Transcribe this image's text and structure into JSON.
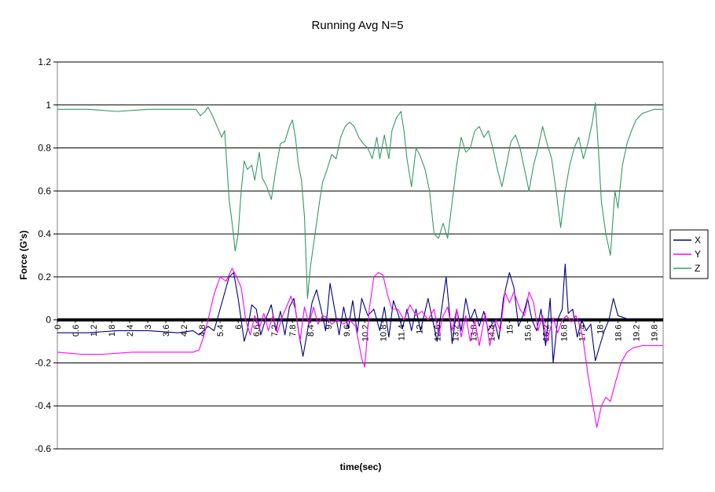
{
  "chart_data": {
    "type": "line",
    "title": "Running Avg N=5",
    "xlabel": "time(sec)",
    "ylabel": "Force (G's)",
    "ylim": [
      -0.6,
      1.2
    ],
    "xlim": [
      0,
      20.1
    ],
    "y_ticks": [
      "1.2",
      "1",
      "0.8",
      "0.6",
      "0.4",
      "0.2",
      "0",
      "-0.2",
      "-0.4",
      "-0.6"
    ],
    "x_ticks": [
      "0",
      "0.6",
      "1.2",
      "1.8",
      "2.4",
      "3",
      "3.6",
      "4.2",
      "4.8",
      "5.4",
      "6",
      "6.6",
      "7.2",
      "7.8",
      "8.4",
      "9",
      "9.6",
      "10.2",
      "10.8",
      "11.4",
      "12",
      "12.6",
      "13.2",
      "13.8",
      "14.4",
      "15",
      "15.6",
      "16.2",
      "16.8",
      "17.4",
      "18",
      "18.6",
      "19.2",
      "19.8"
    ],
    "grid": true,
    "legend_position": "right",
    "series": [
      {
        "name": "X",
        "color": "#000080",
        "points": [
          [
            0,
            -0.06
          ],
          [
            1.0,
            -0.06
          ],
          [
            2.0,
            -0.05
          ],
          [
            3.0,
            -0.05
          ],
          [
            4.0,
            -0.06
          ],
          [
            4.5,
            -0.05
          ],
          [
            4.7,
            -0.07
          ],
          [
            5.0,
            -0.03
          ],
          [
            5.2,
            -0.05
          ],
          [
            5.4,
            0.05
          ],
          [
            5.7,
            0.2
          ],
          [
            5.85,
            0.22
          ],
          [
            6.0,
            0.1
          ],
          [
            6.2,
            -0.1
          ],
          [
            6.3,
            -0.05
          ],
          [
            6.45,
            0.07
          ],
          [
            6.6,
            0.05
          ],
          [
            6.75,
            -0.07
          ],
          [
            6.9,
            0.0
          ],
          [
            7.1,
            0.07
          ],
          [
            7.25,
            -0.05
          ],
          [
            7.4,
            0.04
          ],
          [
            7.55,
            -0.07
          ],
          [
            7.7,
            0.06
          ],
          [
            7.85,
            0.1
          ],
          [
            8.0,
            -0.05
          ],
          [
            8.15,
            -0.17
          ],
          [
            8.3,
            -0.05
          ],
          [
            8.45,
            0.08
          ],
          [
            8.6,
            0.14
          ],
          [
            8.75,
            0.05
          ],
          [
            8.9,
            -0.05
          ],
          [
            9.05,
            0.17
          ],
          [
            9.2,
            0.05
          ],
          [
            9.35,
            -0.07
          ],
          [
            9.5,
            0.06
          ],
          [
            9.65,
            -0.04
          ],
          [
            9.8,
            0.09
          ],
          [
            9.95,
            -0.06
          ],
          [
            10.1,
            0.1
          ],
          [
            10.3,
            0.02
          ],
          [
            10.5,
            0.05
          ],
          [
            10.7,
            -0.05
          ],
          [
            10.85,
            0.06
          ],
          [
            11.0,
            -0.08
          ],
          [
            11.15,
            0.09
          ],
          [
            11.3,
            0.03
          ],
          [
            11.45,
            -0.04
          ],
          [
            11.6,
            0.05
          ],
          [
            11.75,
            -0.05
          ],
          [
            11.9,
            0.05
          ],
          [
            12.05,
            -0.05
          ],
          [
            12.3,
            0.1
          ],
          [
            12.45,
            0.0
          ],
          [
            12.6,
            -0.1
          ],
          [
            12.75,
            0.05
          ],
          [
            12.9,
            0.2
          ],
          [
            13.0,
            0.05
          ],
          [
            13.1,
            -0.11
          ],
          [
            13.25,
            0.05
          ],
          [
            13.4,
            -0.05
          ],
          [
            13.55,
            0.1
          ],
          [
            13.7,
            0.0
          ],
          [
            13.85,
            0.05
          ],
          [
            14.0,
            -0.03
          ],
          [
            14.15,
            0.04
          ],
          [
            14.3,
            -0.05
          ],
          [
            14.5,
            0.0
          ],
          [
            14.65,
            -0.09
          ],
          [
            14.8,
            0.1
          ],
          [
            15.0,
            0.22
          ],
          [
            15.15,
            0.15
          ],
          [
            15.3,
            -0.03
          ],
          [
            15.45,
            0.02
          ],
          [
            15.6,
            0.1
          ],
          [
            15.75,
            0.0
          ],
          [
            15.9,
            -0.05
          ],
          [
            16.05,
            0.05
          ],
          [
            16.2,
            -0.12
          ],
          [
            16.35,
            0.1
          ],
          [
            16.45,
            -0.2
          ],
          [
            16.6,
            0.0
          ],
          [
            16.75,
            0.05
          ],
          [
            16.85,
            0.26
          ],
          [
            16.95,
            0.03
          ],
          [
            17.1,
            0.05
          ],
          [
            17.25,
            -0.08
          ],
          [
            17.4,
            0.0
          ],
          [
            17.55,
            -0.05
          ],
          [
            17.7,
            -0.02
          ],
          [
            17.85,
            -0.19
          ],
          [
            18.0,
            -0.12
          ],
          [
            18.15,
            -0.05
          ],
          [
            18.3,
            0.0
          ],
          [
            18.45,
            0.1
          ],
          [
            18.6,
            0.02
          ],
          [
            18.8,
            0.01
          ],
          [
            19.0,
            0.0
          ]
        ]
      },
      {
        "name": "Y",
        "color": "#ff00ff",
        "points": [
          [
            0,
            -0.15
          ],
          [
            0.8,
            -0.16
          ],
          [
            1.5,
            -0.16
          ],
          [
            2.5,
            -0.15
          ],
          [
            3.5,
            -0.15
          ],
          [
            4.5,
            -0.15
          ],
          [
            4.7,
            -0.14
          ],
          [
            4.85,
            -0.08
          ],
          [
            5.0,
            0.0
          ],
          [
            5.2,
            0.12
          ],
          [
            5.4,
            0.2
          ],
          [
            5.6,
            0.18
          ],
          [
            5.8,
            0.24
          ],
          [
            5.95,
            0.2
          ],
          [
            6.1,
            0.15
          ],
          [
            6.25,
            0.0
          ],
          [
            6.4,
            -0.07
          ],
          [
            6.55,
            0.02
          ],
          [
            6.7,
            -0.04
          ],
          [
            6.85,
            0.03
          ],
          [
            7.0,
            -0.05
          ],
          [
            7.15,
            0.02
          ],
          [
            7.3,
            -0.06
          ],
          [
            7.45,
            0.01
          ],
          [
            7.6,
            0.06
          ],
          [
            7.75,
            0.11
          ],
          [
            7.9,
            0.05
          ],
          [
            8.05,
            -0.1
          ],
          [
            8.2,
            0.06
          ],
          [
            8.35,
            -0.02
          ],
          [
            8.5,
            0.06
          ],
          [
            8.65,
            -0.02
          ],
          [
            8.8,
            0.02
          ],
          [
            8.95,
            0.01
          ],
          [
            9.1,
            -0.02
          ],
          [
            9.3,
            0.0
          ],
          [
            9.5,
            -0.02
          ],
          [
            9.7,
            0.0
          ],
          [
            9.9,
            -0.03
          ],
          [
            10.1,
            -0.18
          ],
          [
            10.2,
            -0.22
          ],
          [
            10.35,
            0.05
          ],
          [
            10.5,
            0.2
          ],
          [
            10.65,
            0.22
          ],
          [
            10.8,
            0.21
          ],
          [
            10.95,
            0.12
          ],
          [
            11.1,
            0.05
          ],
          [
            11.3,
            0.05
          ],
          [
            11.5,
            0.0
          ],
          [
            11.7,
            0.07
          ],
          [
            11.9,
            0.02
          ],
          [
            12.1,
            0.04
          ],
          [
            12.3,
            0.0
          ],
          [
            12.5,
            0.05
          ],
          [
            12.65,
            -0.07
          ],
          [
            12.8,
            0.02
          ],
          [
            12.95,
            0.06
          ],
          [
            13.1,
            -0.05
          ],
          [
            13.25,
            0.05
          ],
          [
            13.4,
            -0.08
          ],
          [
            13.55,
            0.02
          ],
          [
            13.7,
            -0.1
          ],
          [
            13.85,
            0.0
          ],
          [
            14.0,
            -0.12
          ],
          [
            14.2,
            0.03
          ],
          [
            14.35,
            -0.12
          ],
          [
            14.55,
            0.0
          ],
          [
            14.7,
            -0.05
          ],
          [
            14.85,
            0.13
          ],
          [
            15.0,
            0.08
          ],
          [
            15.15,
            0.13
          ],
          [
            15.35,
            0.05
          ],
          [
            15.5,
            0.02
          ],
          [
            15.65,
            0.13
          ],
          [
            15.8,
            0.08
          ],
          [
            15.95,
            -0.05
          ],
          [
            16.1,
            0.02
          ],
          [
            16.25,
            -0.1
          ],
          [
            16.45,
            0.01
          ],
          [
            16.6,
            -0.06
          ],
          [
            16.75,
            0.0
          ],
          [
            16.9,
            0.02
          ],
          [
            17.05,
            -0.01
          ],
          [
            17.2,
            0.02
          ],
          [
            17.35,
            -0.03
          ],
          [
            17.45,
            -0.1
          ],
          [
            17.6,
            -0.25
          ],
          [
            17.75,
            -0.38
          ],
          [
            17.9,
            -0.5
          ],
          [
            18.05,
            -0.4
          ],
          [
            18.2,
            -0.36
          ],
          [
            18.35,
            -0.38
          ],
          [
            18.5,
            -0.3
          ],
          [
            18.7,
            -0.2
          ],
          [
            18.9,
            -0.15
          ],
          [
            19.1,
            -0.13
          ],
          [
            19.4,
            -0.12
          ],
          [
            19.8,
            -0.12
          ],
          [
            20.1,
            -0.12
          ]
        ]
      },
      {
        "name": "Z",
        "color": "#339966",
        "points": [
          [
            0,
            0.98
          ],
          [
            1.0,
            0.98
          ],
          [
            2.0,
            0.97
          ],
          [
            3.0,
            0.98
          ],
          [
            4.0,
            0.98
          ],
          [
            4.6,
            0.98
          ],
          [
            4.75,
            0.95
          ],
          [
            4.9,
            0.97
          ],
          [
            5.0,
            0.99
          ],
          [
            5.15,
            0.95
          ],
          [
            5.3,
            0.9
          ],
          [
            5.45,
            0.85
          ],
          [
            5.55,
            0.88
          ],
          [
            5.7,
            0.56
          ],
          [
            5.8,
            0.45
          ],
          [
            5.9,
            0.32
          ],
          [
            6.0,
            0.4
          ],
          [
            6.1,
            0.6
          ],
          [
            6.2,
            0.74
          ],
          [
            6.3,
            0.7
          ],
          [
            6.45,
            0.72
          ],
          [
            6.55,
            0.65
          ],
          [
            6.7,
            0.78
          ],
          [
            6.8,
            0.66
          ],
          [
            6.95,
            0.62
          ],
          [
            7.1,
            0.56
          ],
          [
            7.25,
            0.7
          ],
          [
            7.4,
            0.82
          ],
          [
            7.55,
            0.83
          ],
          [
            7.7,
            0.9
          ],
          [
            7.8,
            0.93
          ],
          [
            7.9,
            0.85
          ],
          [
            8.0,
            0.72
          ],
          [
            8.1,
            0.65
          ],
          [
            8.2,
            0.48
          ],
          [
            8.3,
            0.1
          ],
          [
            8.4,
            0.25
          ],
          [
            8.55,
            0.4
          ],
          [
            8.7,
            0.55
          ],
          [
            8.8,
            0.64
          ],
          [
            8.95,
            0.7
          ],
          [
            9.1,
            0.77
          ],
          [
            9.25,
            0.75
          ],
          [
            9.4,
            0.85
          ],
          [
            9.55,
            0.9
          ],
          [
            9.7,
            0.92
          ],
          [
            9.85,
            0.9
          ],
          [
            10.0,
            0.85
          ],
          [
            10.15,
            0.82
          ],
          [
            10.3,
            0.8
          ],
          [
            10.45,
            0.75
          ],
          [
            10.6,
            0.85
          ],
          [
            10.7,
            0.75
          ],
          [
            10.85,
            0.86
          ],
          [
            11.0,
            0.75
          ],
          [
            11.1,
            0.88
          ],
          [
            11.25,
            0.94
          ],
          [
            11.4,
            0.97
          ],
          [
            11.5,
            0.88
          ],
          [
            11.6,
            0.75
          ],
          [
            11.75,
            0.62
          ],
          [
            11.9,
            0.8
          ],
          [
            12.05,
            0.76
          ],
          [
            12.2,
            0.7
          ],
          [
            12.35,
            0.6
          ],
          [
            12.5,
            0.4
          ],
          [
            12.65,
            0.38
          ],
          [
            12.8,
            0.45
          ],
          [
            12.95,
            0.38
          ],
          [
            13.1,
            0.55
          ],
          [
            13.25,
            0.72
          ],
          [
            13.4,
            0.85
          ],
          [
            13.55,
            0.78
          ],
          [
            13.7,
            0.8
          ],
          [
            13.85,
            0.88
          ],
          [
            14.0,
            0.9
          ],
          [
            14.15,
            0.85
          ],
          [
            14.3,
            0.88
          ],
          [
            14.45,
            0.8
          ],
          [
            14.6,
            0.7
          ],
          [
            14.75,
            0.62
          ],
          [
            14.9,
            0.72
          ],
          [
            15.05,
            0.83
          ],
          [
            15.2,
            0.86
          ],
          [
            15.35,
            0.8
          ],
          [
            15.5,
            0.7
          ],
          [
            15.65,
            0.6
          ],
          [
            15.8,
            0.72
          ],
          [
            15.95,
            0.8
          ],
          [
            16.1,
            0.9
          ],
          [
            16.25,
            0.82
          ],
          [
            16.4,
            0.75
          ],
          [
            16.55,
            0.6
          ],
          [
            16.7,
            0.43
          ],
          [
            16.85,
            0.6
          ],
          [
            17.0,
            0.72
          ],
          [
            17.15,
            0.8
          ],
          [
            17.3,
            0.85
          ],
          [
            17.45,
            0.75
          ],
          [
            17.6,
            0.82
          ],
          [
            17.75,
            0.92
          ],
          [
            17.85,
            1.01
          ],
          [
            17.95,
            0.8
          ],
          [
            18.05,
            0.55
          ],
          [
            18.2,
            0.4
          ],
          [
            18.35,
            0.3
          ],
          [
            18.5,
            0.6
          ],
          [
            18.6,
            0.52
          ],
          [
            18.75,
            0.72
          ],
          [
            18.9,
            0.82
          ],
          [
            19.05,
            0.88
          ],
          [
            19.2,
            0.93
          ],
          [
            19.4,
            0.96
          ],
          [
            19.6,
            0.97
          ],
          [
            19.8,
            0.98
          ],
          [
            20.1,
            0.98
          ]
        ]
      }
    ]
  }
}
